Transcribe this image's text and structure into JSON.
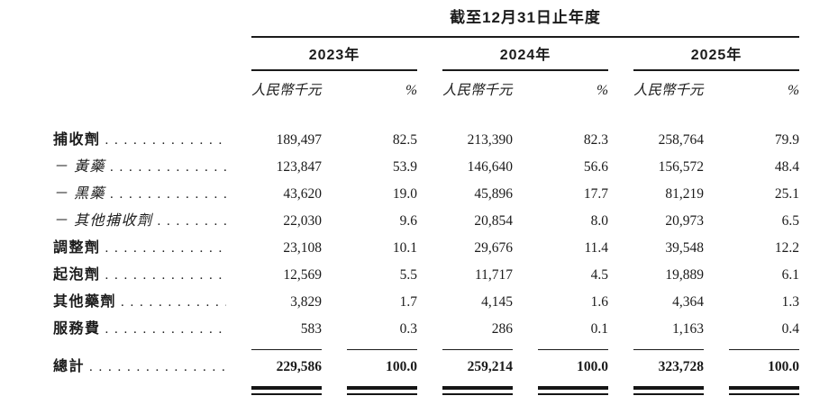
{
  "table": {
    "title": "截至12月31日止年度",
    "years": [
      "2023年",
      "2024年",
      "2025年"
    ],
    "columns": {
      "amount": "人民幣千元",
      "percent": "%"
    },
    "leader_dots": ". . . . . . . . . . . . . . . . . . . . . . . . .",
    "rows": [
      {
        "label": "捕收劑",
        "values": [
          "189,497",
          "82.5",
          "213,390",
          "82.3",
          "258,764",
          "79.9"
        ]
      },
      {
        "label": "－ 黃藥",
        "values": [
          "123,847",
          "53.9",
          "146,640",
          "56.6",
          "156,572",
          "48.4"
        ]
      },
      {
        "label": "－ 黑藥",
        "values": [
          "43,620",
          "19.0",
          "45,896",
          "17.7",
          "81,219",
          "25.1"
        ]
      },
      {
        "label": "－ 其他捕收劑",
        "values": [
          "22,030",
          "9.6",
          "20,854",
          "8.0",
          "20,973",
          "6.5"
        ]
      },
      {
        "label": "調整劑",
        "values": [
          "23,108",
          "10.1",
          "29,676",
          "11.4",
          "39,548",
          "12.2"
        ]
      },
      {
        "label": "起泡劑",
        "values": [
          "12,569",
          "5.5",
          "11,717",
          "4.5",
          "19,889",
          "6.1"
        ]
      },
      {
        "label": "其他藥劑",
        "values": [
          "3,829",
          "1.7",
          "4,145",
          "1.6",
          "4,364",
          "1.3"
        ]
      },
      {
        "label": "服務費",
        "values": [
          "583",
          "0.3",
          "286",
          "0.1",
          "1,163",
          "0.4"
        ]
      },
      {
        "label": "總計",
        "values": [
          "229,586",
          "100.0",
          "259,214",
          "100.0",
          "323,728",
          "100.0"
        ]
      }
    ]
  }
}
